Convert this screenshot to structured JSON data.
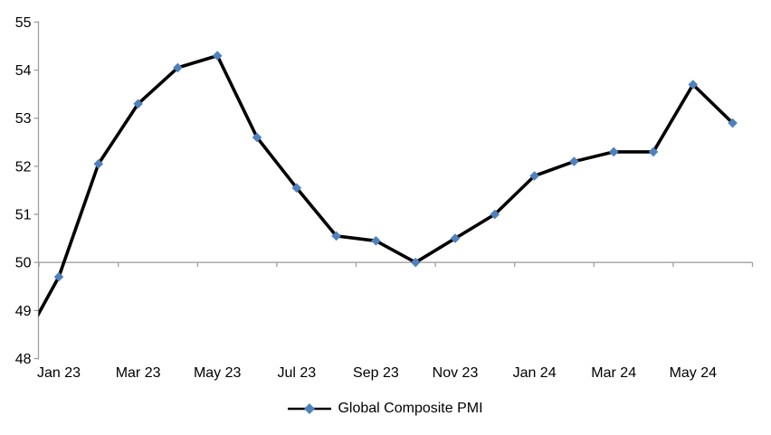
{
  "page": {
    "background": "#ffffff"
  },
  "legend": {
    "label": "Global Composite PMI",
    "marker_color": "#4F81BD",
    "line_color": "#000000"
  },
  "chart_data": {
    "type": "line",
    "title": "",
    "series_name": "Global Composite PMI",
    "categories": [
      "Jan 23",
      "Feb 23",
      "Mar 23",
      "Apr 23",
      "May 23",
      "Jun 23",
      "Jul 23",
      "Aug 23",
      "Sep 23",
      "Oct 23",
      "Nov 23",
      "Dec 23",
      "Jan 24",
      "Feb 24",
      "Mar 24",
      "Apr 24",
      "May 24",
      "Jun 24"
    ],
    "values": [
      49.7,
      52.05,
      53.3,
      54.05,
      54.3,
      52.6,
      51.55,
      50.55,
      50.45,
      50.0,
      50.5,
      51.0,
      51.8,
      52.1,
      52.3,
      52.3,
      53.7,
      52.9
    ],
    "lead_in_point": {
      "category": "Dec 22",
      "value": 48.2,
      "note": "line enters from left edge, marker clipped outside plot area"
    },
    "xtick_labels": [
      "Jan 23",
      "Mar 23",
      "May 23",
      "Jul 23",
      "Sep 23",
      "Nov 23",
      "Jan 24",
      "Mar 24",
      "May 24"
    ],
    "ylim": [
      48,
      55
    ],
    "ytick_step": 1,
    "ytick_labels": [
      "48",
      "49",
      "50",
      "51",
      "52",
      "53",
      "54",
      "55"
    ],
    "x_axis_crosses_at": 50,
    "grid": false,
    "legend_position": "bottom",
    "line_color": "#000000",
    "marker": {
      "shape": "diamond",
      "color": "#4F81BD"
    },
    "axis_color": "#A0A0A0",
    "label_color": "#000000"
  }
}
